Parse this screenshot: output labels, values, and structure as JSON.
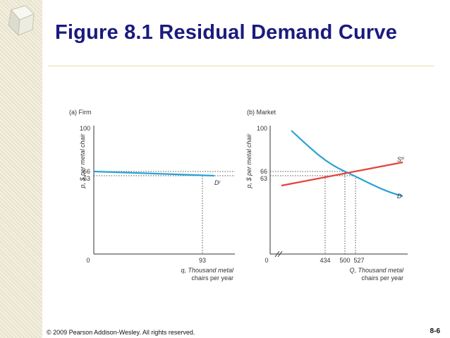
{
  "slide": {
    "title": "Figure 8.1 Residual Demand Curve",
    "copyright": "© 2009 Pearson Addison-Wesley. All rights reserved.",
    "page_number": "8-6"
  },
  "colors": {
    "title": "#1a1a7e",
    "demand": "#29a3d6",
    "supply": "#e5423a",
    "axis": "#333333"
  },
  "chart_data": [
    {
      "type": "line",
      "panel_label": "(a) Firm",
      "ylabel": "p, $ per metal chair",
      "xlabel_line1": "q, Thousand metal",
      "xlabel_line2": "chairs per year",
      "origin_label": "0",
      "ylim": [
        0,
        100
      ],
      "y_ticks": [
        "100",
        "66",
        "63"
      ],
      "x_ticks": [
        "93"
      ],
      "series": [
        {
          "name": "Dʳ",
          "x": [
            0,
            93
          ],
          "y": [
            66.0,
            63.0
          ]
        }
      ],
      "reference_lines": {
        "price_levels": [
          66,
          63
        ],
        "quantity": 93
      }
    },
    {
      "type": "line",
      "panel_label": "(b) Market",
      "ylabel": "p, $ per metal chair",
      "xlabel_line1": "Q, Thousand metal",
      "xlabel_line2": "chairs per year",
      "origin_label": "0",
      "ylim": [
        0,
        100
      ],
      "y_ticks": [
        "100",
        "66",
        "63"
      ],
      "x_ticks": [
        "434",
        "500",
        "527"
      ],
      "series": [
        {
          "name": "D",
          "x": [
            350,
            400,
            450,
            500,
            527,
            560,
            600
          ],
          "y": [
            97,
            84,
            74,
            66,
            63,
            59,
            55
          ]
        },
        {
          "name": "Sº",
          "x": [
            340,
            434,
            500,
            600
          ],
          "y": [
            56,
            63,
            66,
            75
          ]
        }
      ],
      "reference_lines": {
        "price_levels": [
          66,
          63
        ],
        "quantities": [
          434,
          500,
          527
        ]
      }
    }
  ]
}
